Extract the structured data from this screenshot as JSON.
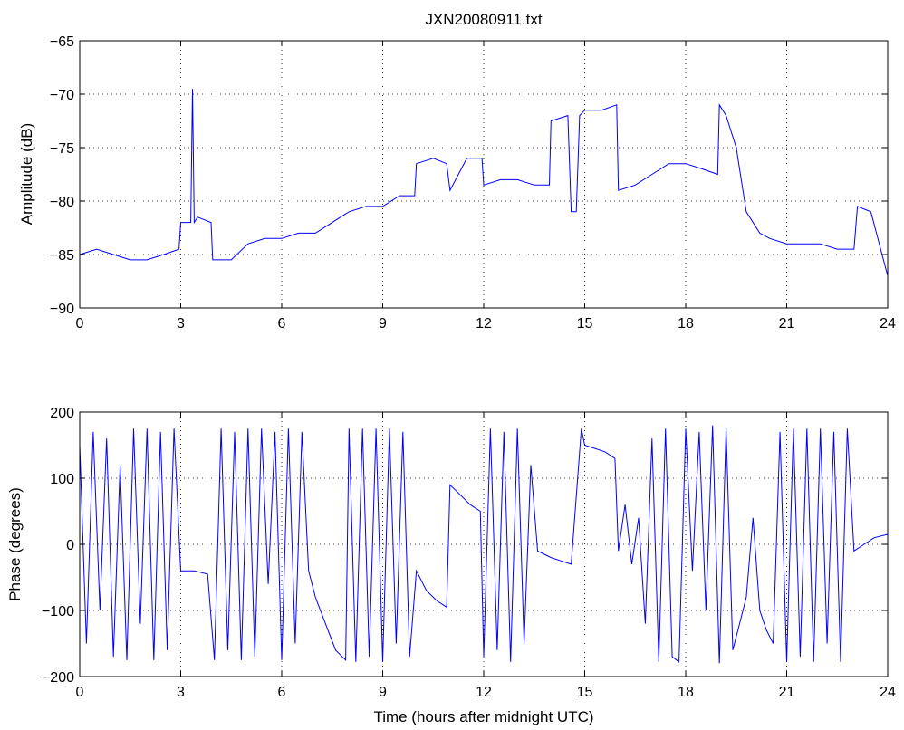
{
  "chart_data": [
    {
      "type": "line",
      "title": "JXN20080911.txt",
      "xlabel": "",
      "ylabel": "Amplitude (dB)",
      "xlim": [
        0,
        24
      ],
      "ylim": [
        -90,
        -65
      ],
      "xticks": [
        "0",
        "3",
        "6",
        "9",
        "12",
        "15",
        "18",
        "21",
        "24"
      ],
      "yticks": [
        "-65",
        "-70",
        "-75",
        "-80",
        "-85",
        "-90"
      ],
      "grid": true,
      "line_color": "#0000ff",
      "series": [
        {
          "x": [
            0,
            0.5,
            1,
            1.5,
            2,
            2.5,
            2.95,
            3.0,
            3.3,
            3.35,
            3.4,
            3.5,
            3.9,
            3.95,
            4.5,
            5,
            5.5,
            6,
            6.5,
            7,
            7.5,
            8,
            8.5,
            9,
            9.5,
            9.95,
            10.0,
            10.5,
            10.9,
            11.0,
            11.5,
            11.95,
            12.0,
            12.5,
            13,
            13.5,
            13.95,
            14.0,
            14.5,
            14.6,
            14.75,
            14.85,
            15.0,
            15.5,
            15.95,
            16.0,
            16.5,
            17,
            17.5,
            18,
            18.5,
            18.95,
            19.0,
            19.2,
            19.5,
            19.8,
            20.2,
            20.5,
            21,
            21.5,
            22,
            22.5,
            23.0,
            23.1,
            23.5,
            24.0
          ],
          "y": [
            -85,
            -84.5,
            -85,
            -85.5,
            -85.5,
            -85,
            -84.5,
            -82,
            -82,
            -69.5,
            -82,
            -81.5,
            -82,
            -85.5,
            -85.5,
            -84,
            -83.5,
            -83.5,
            -83,
            -83,
            -82,
            -81,
            -80.5,
            -80.5,
            -79.5,
            -79.5,
            -76.5,
            -76,
            -76.5,
            -79,
            -76,
            -76,
            -78.5,
            -78,
            -78,
            -78.5,
            -78.5,
            -72.5,
            -72,
            -81,
            -81,
            -72,
            -71.5,
            -71.5,
            -71,
            -79,
            -78.5,
            -77.5,
            -76.5,
            -76.5,
            -77,
            -77.5,
            -71,
            -72,
            -75,
            -81,
            -83,
            -83.5,
            -84,
            -84,
            -84,
            -84.5,
            -84.5,
            -80.5,
            -81,
            -87
          ]
        }
      ]
    },
    {
      "type": "line",
      "title": "",
      "xlabel": "Time (hours after midnight UTC)",
      "ylabel": "Phase (degrees)",
      "xlim": [
        0,
        24
      ],
      "ylim": [
        -200,
        200
      ],
      "xticks": [
        "0",
        "3",
        "6",
        "9",
        "12",
        "15",
        "18",
        "21",
        "24"
      ],
      "yticks": [
        "200",
        "100",
        "0",
        "-100",
        "-200"
      ],
      "grid": true,
      "line_color": "#0000ff",
      "series": [
        {
          "x": [
            0,
            0.2,
            0.4,
            0.6,
            0.8,
            1.0,
            1.2,
            1.4,
            1.6,
            1.8,
            2.0,
            2.2,
            2.4,
            2.6,
            2.8,
            3.0,
            3.4,
            3.8,
            4.0,
            4.2,
            4.4,
            4.6,
            4.8,
            5.0,
            5.2,
            5.4,
            5.6,
            5.8,
            6.0,
            6.2,
            6.4,
            6.6,
            6.8,
            7.0,
            7.3,
            7.6,
            7.9,
            8.0,
            8.2,
            8.4,
            8.6,
            8.8,
            9.0,
            9.2,
            9.4,
            9.6,
            9.8,
            10.0,
            10.3,
            10.6,
            10.9,
            11.0,
            11.3,
            11.6,
            11.9,
            12.0,
            12.2,
            12.4,
            12.6,
            12.8,
            13.0,
            13.2,
            13.4,
            13.6,
            13.8,
            14.0,
            14.3,
            14.6,
            14.9,
            15.0,
            15.3,
            15.6,
            15.9,
            16.0,
            16.2,
            16.4,
            16.6,
            16.8,
            17.0,
            17.2,
            17.4,
            17.6,
            17.8,
            18.0,
            18.2,
            18.4,
            18.6,
            18.8,
            19.0,
            19.2,
            19.4,
            19.6,
            19.8,
            20.0,
            20.2,
            20.4,
            20.6,
            20.8,
            21.0,
            21.2,
            21.4,
            21.6,
            21.8,
            22.0,
            22.2,
            22.4,
            22.6,
            22.8,
            23.0,
            23.3,
            23.6,
            24.0
          ],
          "y": [
            150,
            -150,
            170,
            -100,
            160,
            -170,
            120,
            -175,
            175,
            -120,
            175,
            -175,
            170,
            -160,
            175,
            -40,
            -40,
            -45,
            -175,
            175,
            -160,
            170,
            -175,
            175,
            -170,
            175,
            -60,
            170,
            -175,
            175,
            -150,
            170,
            -40,
            -80,
            -120,
            -160,
            -175,
            175,
            -178,
            175,
            -170,
            175,
            -178,
            175,
            -150,
            170,
            -170,
            -40,
            -70,
            -85,
            -95,
            90,
            75,
            60,
            50,
            -170,
            175,
            -160,
            170,
            -178,
            175,
            -150,
            120,
            -10,
            -15,
            -20,
            -25,
            -30,
            175,
            150,
            145,
            140,
            130,
            -10,
            60,
            -30,
            40,
            -120,
            160,
            -178,
            175,
            -170,
            -178,
            175,
            -40,
            170,
            -100,
            180,
            -180,
            175,
            -160,
            -120,
            -80,
            40,
            -100,
            -130,
            -150,
            170,
            -178,
            175,
            -170,
            175,
            -178,
            175,
            -150,
            170,
            -178,
            175,
            -10,
            0,
            10,
            15
          ]
        }
      ]
    }
  ]
}
